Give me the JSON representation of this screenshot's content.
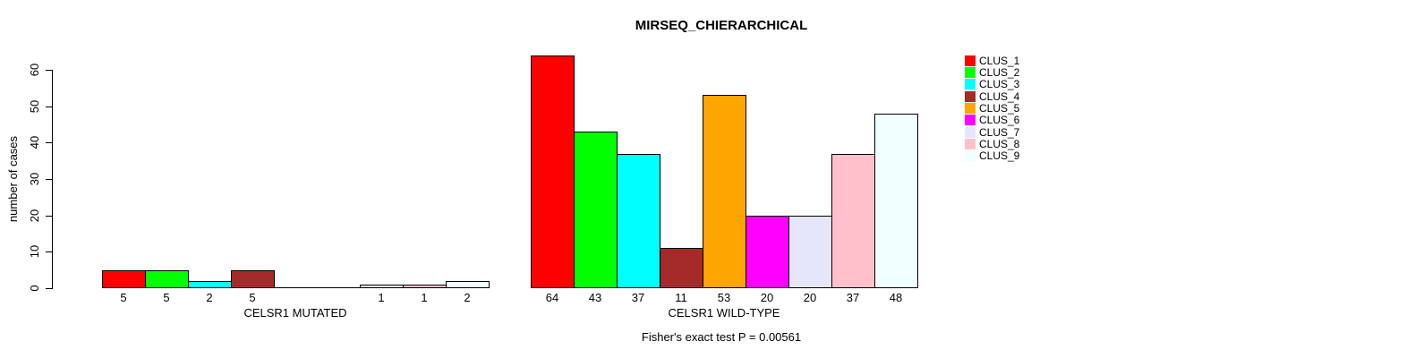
{
  "title": "MIRSEQ_CHIERARCHICAL",
  "footer": "Fisher's exact test P = 0.00561",
  "chart_data": {
    "type": "bar",
    "title": "MIRSEQ_CHIERARCHICAL",
    "ylabel": "number of cases",
    "ylim": [
      0,
      64
    ],
    "yticks": [
      0,
      10,
      20,
      30,
      40,
      50,
      60
    ],
    "grid": false,
    "legend_position": "right",
    "legend": [
      {
        "label": "CLUS_1",
        "color": "#FF0000"
      },
      {
        "label": "CLUS_2",
        "color": "#00FF00"
      },
      {
        "label": "CLUS_3",
        "color": "#00FFFF"
      },
      {
        "label": "CLUS_4",
        "color": "#A52A2A"
      },
      {
        "label": "CLUS_5",
        "color": "#FFA500"
      },
      {
        "label": "CLUS_6",
        "color": "#FF00FF"
      },
      {
        "label": "CLUS_7",
        "color": "#E6E6FA"
      },
      {
        "label": "CLUS_8",
        "color": "#FFC0CB"
      },
      {
        "label": "CLUS_9",
        "color": "#F0FFFF"
      }
    ],
    "groups": [
      {
        "xlabel": "CELSR1 MUTATED",
        "values": [
          5,
          5,
          2,
          5,
          0,
          0,
          1,
          1,
          2
        ]
      },
      {
        "xlabel": "CELSR1 WILD-TYPE",
        "values": [
          64,
          43,
          37,
          11,
          53,
          20,
          20,
          37,
          48
        ]
      }
    ],
    "annotation": "Fisher's exact test P = 0.00561"
  }
}
